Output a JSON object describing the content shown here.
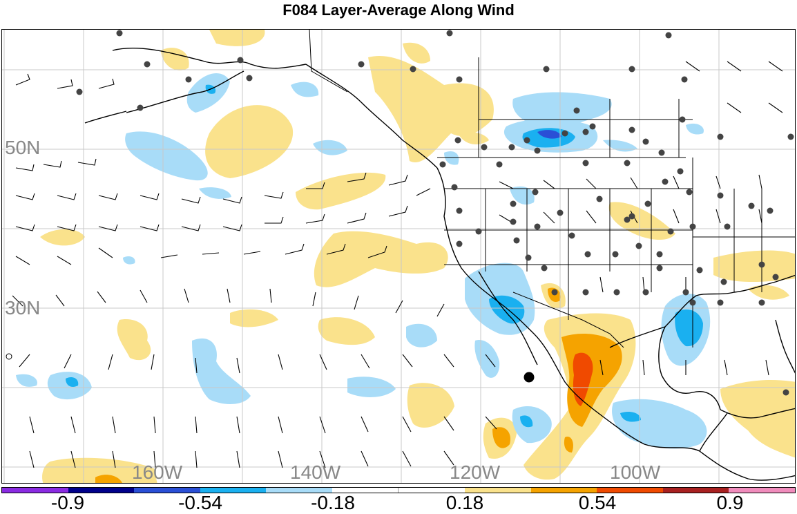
{
  "title": "F084 Layer-Average Along Wind",
  "lat_labels": [
    "50N",
    "30N"
  ],
  "lon_labels": [
    "160W",
    "140W",
    "120W",
    "100W"
  ],
  "colorbar": {
    "colors": [
      "#8a2be2",
      "#00008b",
      "#2a4fd6",
      "#1ab0f0",
      "#a8dcf8",
      "#ffffff",
      "#ffffff",
      "#fae28c",
      "#f5a300",
      "#f04a00",
      "#a82020",
      "#f08cbc"
    ],
    "labels": [
      "-0.9",
      "-0.54",
      "-0.18",
      "0.18",
      "0.54",
      "0.9"
    ]
  },
  "colors": {
    "positive_light": "#fae28c",
    "positive_mid": "#f5a300",
    "positive_strong": "#f04a00",
    "negative_light": "#a8dcf8",
    "negative_mid": "#1ab0f0",
    "negative_strong": "#2a4fd6",
    "station": "#444444",
    "grid": "#c8c8c8",
    "coast": "#000000"
  }
}
